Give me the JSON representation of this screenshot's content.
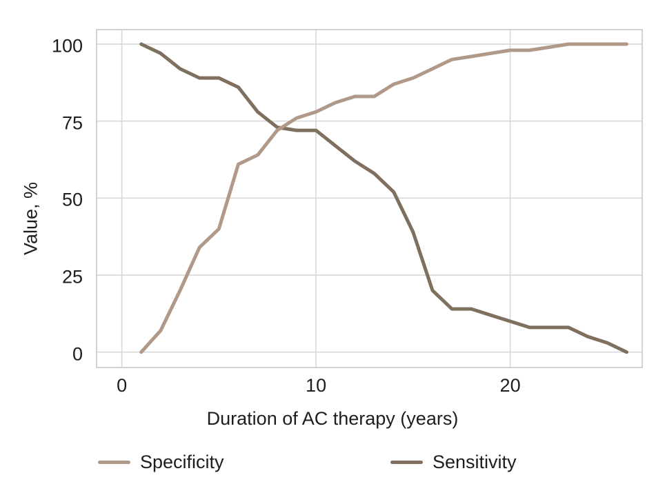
{
  "figure": {
    "background": "#ffffff",
    "text_color": "#1d1d1d",
    "grid_color": "#d4d4d4",
    "panel_border_color": "#c3c3c3"
  },
  "chart_data": {
    "type": "line",
    "title": "",
    "xlabel": "Duration of AC therapy (years)",
    "ylabel": "Value, %",
    "x_ticks": [
      0,
      10,
      20
    ],
    "y_ticks": [
      100,
      75,
      50,
      25,
      0
    ],
    "xlim": [
      -1.3,
      26.8
    ],
    "ylim": [
      -5,
      104.7
    ],
    "grid": true,
    "legend_position": "bottom",
    "x": [
      1,
      2,
      3,
      4,
      5,
      6,
      7,
      8,
      9,
      10,
      11,
      12,
      13,
      14,
      15,
      16,
      17,
      18,
      19,
      20,
      21,
      22,
      23,
      24,
      25,
      26
    ],
    "series": [
      {
        "name": "Specificity",
        "color": "#b1998a",
        "values": [
          0,
          7,
          20,
          34,
          40,
          61,
          64,
          72,
          76,
          78,
          81,
          83,
          83,
          87,
          89,
          92,
          95,
          96,
          97,
          98,
          98,
          99,
          100,
          100,
          100,
          100
        ]
      },
      {
        "name": "Sensitivity",
        "color": "#7f6f5e",
        "values": [
          100,
          97,
          92,
          89,
          89,
          86,
          78,
          73,
          72,
          72,
          67,
          62,
          58,
          52,
          39,
          20,
          14,
          14,
          12,
          10,
          8,
          8,
          8,
          5,
          3,
          0
        ]
      }
    ]
  }
}
